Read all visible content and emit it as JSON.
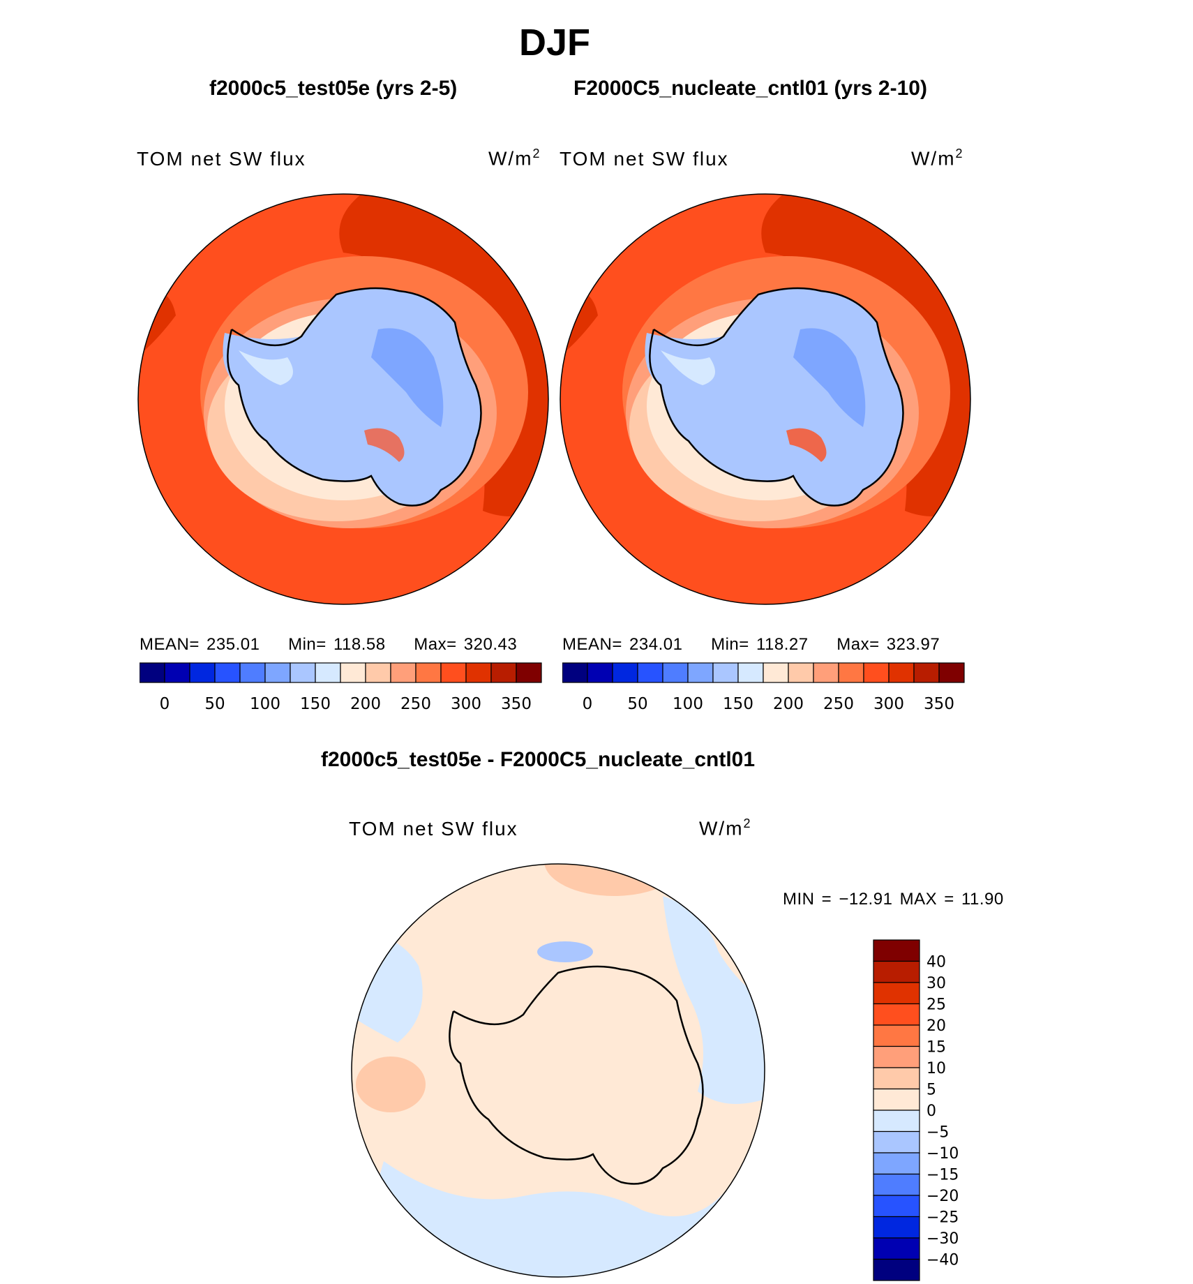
{
  "title": "DJF",
  "panels": [
    {
      "id": "test",
      "title": "f2000c5_test05e (yrs 2-5)",
      "variable": "TOM net SW flux",
      "units": "W/m",
      "units_sup": "2",
      "stats": {
        "mean_label": "MEAN=",
        "mean": "235.01",
        "min_label": "Min=",
        "min": "118.58",
        "max_label": "Max=",
        "max": "320.43"
      }
    },
    {
      "id": "cntl",
      "title": "F2000C5_nucleate_cntl01 (yrs 2-10)",
      "variable": "TOM net SW flux",
      "units": "W/m",
      "units_sup": "2",
      "stats": {
        "mean_label": "MEAN=",
        "mean": "234.01",
        "min_label": "Min=",
        "min": "118.27",
        "max_label": "Max=",
        "max": "323.97"
      }
    },
    {
      "id": "diff",
      "title": "f2000c5_test05e - F2000C5_nucleate_cntl01",
      "variable": "TOM net SW flux",
      "units": "W/m",
      "units_sup": "2",
      "stats": {
        "text": "MIN = −12.91 MAX =   11.90"
      }
    }
  ],
  "colorbar_main": {
    "colors": [
      "#00007f",
      "#0000b2",
      "#0027e0",
      "#2753ff",
      "#4f7dff",
      "#7ea6ff",
      "#aac6ff",
      "#d6e9ff",
      "#ffe9d6",
      "#ffcaaa",
      "#ff9f7a",
      "#ff7743",
      "#ff4f1e",
      "#e03200",
      "#b81d00",
      "#7f0000"
    ],
    "tick_labels": [
      "0",
      "50",
      "100",
      "150",
      "200",
      "250",
      "300",
      "350"
    ],
    "tick_values": [
      0,
      50,
      100,
      150,
      200,
      250,
      300,
      350
    ]
  },
  "colorbar_diff": {
    "colors": [
      "#00007f",
      "#0000b2",
      "#0027e0",
      "#2753ff",
      "#4f7dff",
      "#7ea6ff",
      "#aac6ff",
      "#d6e9ff",
      "#ffe9d6",
      "#ffcaaa",
      "#ff9f7a",
      "#ff7743",
      "#ff4f1e",
      "#e03200",
      "#b81d00",
      "#7f0000"
    ],
    "tick_labels": [
      "40",
      "30",
      "25",
      "20",
      "15",
      "10",
      "5",
      "0",
      "−5",
      "−10",
      "−15",
      "−20",
      "−25",
      "−30",
      "−40"
    ]
  },
  "chart_data": [
    {
      "type": "heatmap",
      "title": "f2000c5_test05e (yrs 2-5)",
      "variable": "TOM net SW flux",
      "units": "W/m2",
      "projection": "south polar stereographic",
      "mean": 235.01,
      "min": 118.58,
      "max": 320.43,
      "levels": [
        0,
        25,
        50,
        75,
        100,
        125,
        150,
        175,
        200,
        225,
        250,
        275,
        300,
        325,
        350
      ]
    },
    {
      "type": "heatmap",
      "title": "F2000C5_nucleate_cntl01 (yrs 2-10)",
      "variable": "TOM net SW flux",
      "units": "W/m2",
      "projection": "south polar stereographic",
      "mean": 234.01,
      "min": 118.27,
      "max": 323.97,
      "levels": [
        0,
        25,
        50,
        75,
        100,
        125,
        150,
        175,
        200,
        225,
        250,
        275,
        300,
        325,
        350
      ]
    },
    {
      "type": "heatmap",
      "title": "f2000c5_test05e - F2000C5_nucleate_cntl01",
      "variable": "TOM net SW flux",
      "units": "W/m2",
      "projection": "south polar stereographic",
      "min": -12.91,
      "max": 11.9,
      "levels": [
        -40,
        -30,
        -25,
        -20,
        -15,
        -10,
        -5,
        0,
        5,
        10,
        15,
        20,
        25,
        30,
        40
      ]
    }
  ]
}
